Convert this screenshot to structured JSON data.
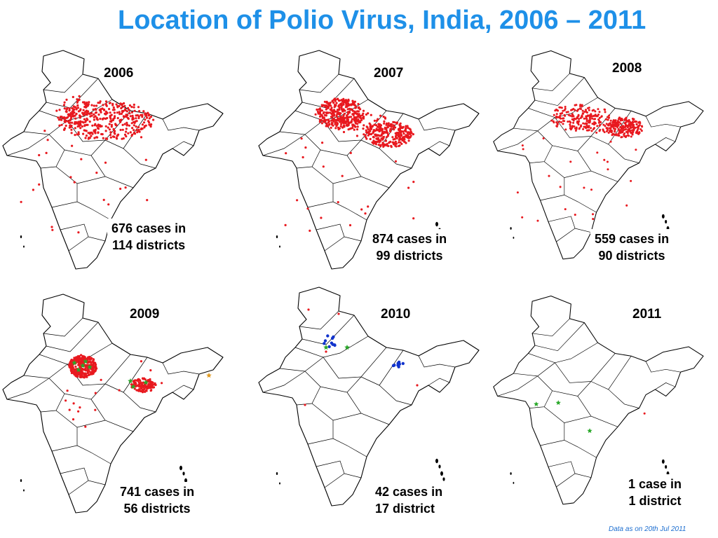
{
  "title": "Location of Polio Virus, India, 2006 – 2011",
  "footnote": "Data as on 20th Jul 2011",
  "colors": {
    "title": "#1e90e8",
    "case_red": "#e8191f",
    "case_blue": "#1133cc",
    "star_green": "#2aa82a",
    "star_orange": "#e09a20",
    "footnote": "#1e6fd0"
  },
  "panels": [
    {
      "year": "2006",
      "cases_line1": "676 cases in",
      "cases_line2": "114 districts",
      "markers": "red dots dense across north / Uttar Pradesh"
    },
    {
      "year": "2007",
      "cases_line1": "874 cases in",
      "cases_line2": "99 districts",
      "markers": "red dots dense in western UP and Bihar"
    },
    {
      "year": "2008",
      "cases_line1": "559 cases in",
      "cases_line2": "90 districts",
      "markers": "red dots in UP and Bihar"
    },
    {
      "year": "2009",
      "cases_line1": "741 cases in",
      "cases_line2": "56 districts",
      "markers": "red dots, green and orange stars"
    },
    {
      "year": "2010",
      "cases_line1": "42 cases in",
      "cases_line2": "17 district",
      "markers": "blue dots, green stars, few red dots"
    },
    {
      "year": "2011",
      "cases_line1": "1 case in",
      "cases_line2": "1 district",
      "markers": "green stars, one red dot"
    }
  ]
}
